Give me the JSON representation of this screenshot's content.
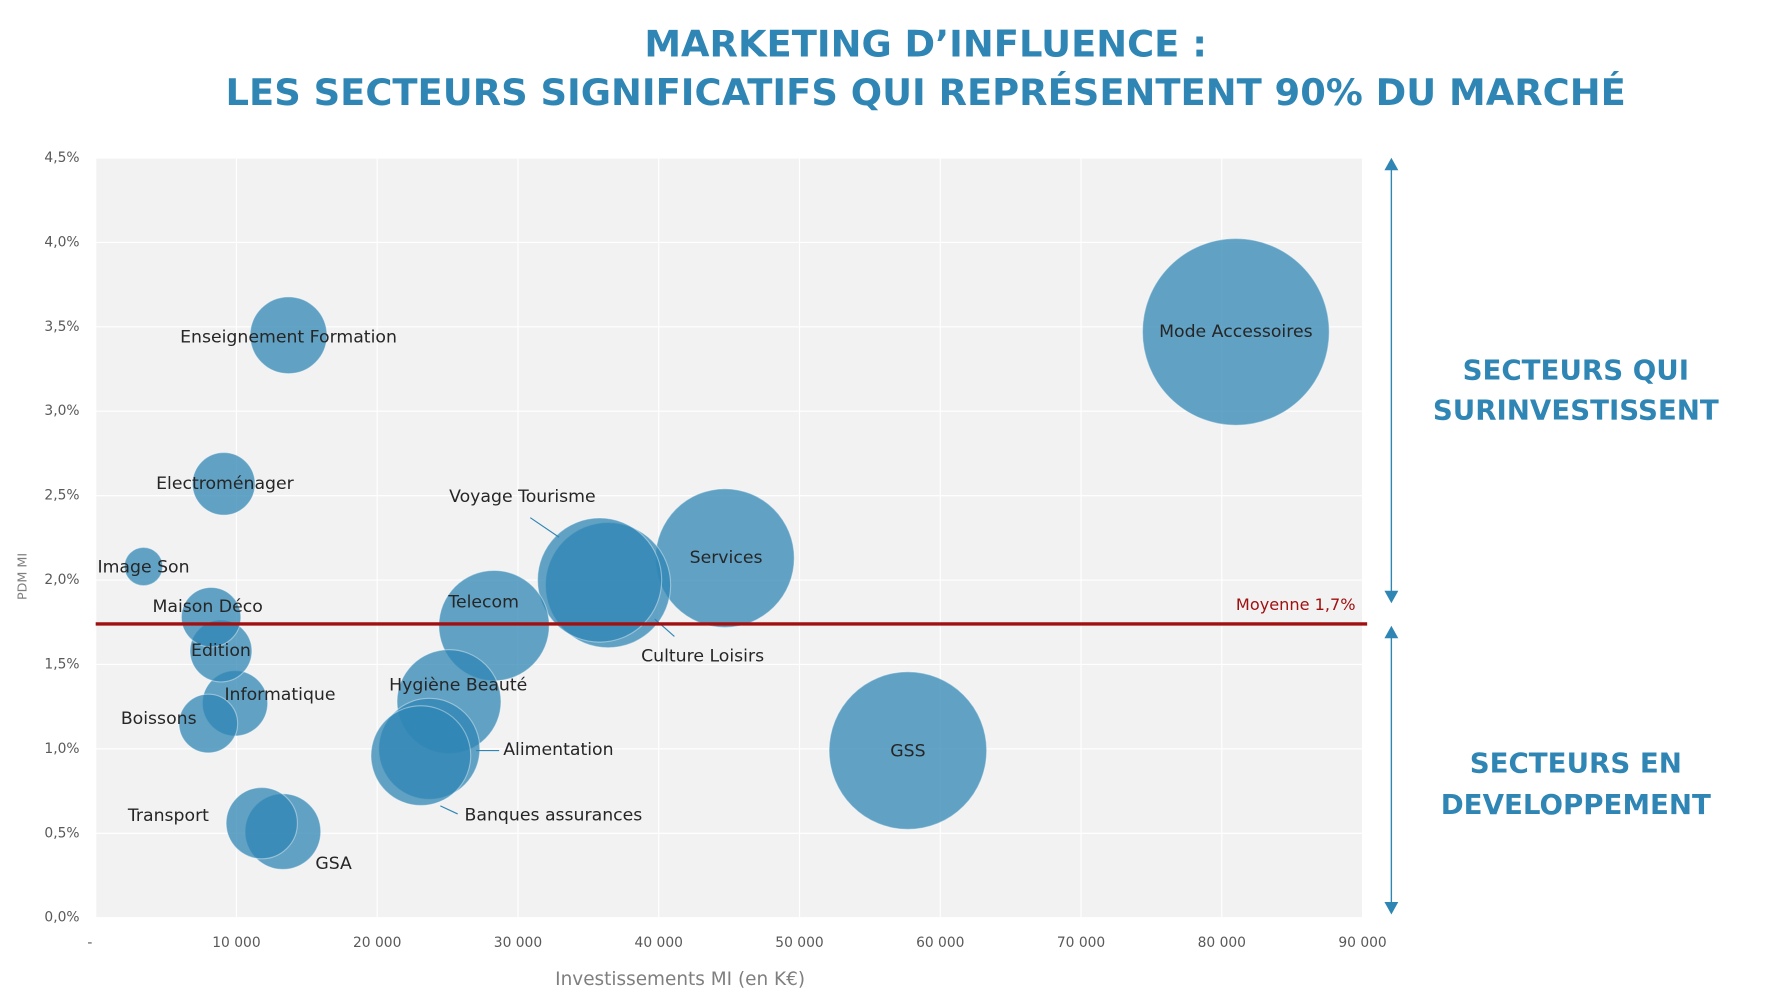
{
  "chart_data": {
    "type": "bubble",
    "title": "MARKETING D’INFLUENCE :",
    "subtitle": "LES SECTEURS SIGNIFICATIFS QUI REPRÉSENTENT 90% DU MARCHÉ",
    "x_label": "Investissements MI (en K€)",
    "y_label": "PDM MI",
    "color": "#2f86b4",
    "grid": true,
    "categories": [
      "Mode Accessoires",
      "Enseignement Formation",
      "Electroménager",
      "Image Son",
      "Maison Déco",
      "Edition",
      "Informatique",
      "Boissons",
      "Transport",
      "GSA",
      "Telecom",
      "Voyage Tourisme",
      "Culture Loisirs",
      "Services",
      "Hygiène Beauté",
      "Alimentation",
      "Banques assurances",
      "GSS"
    ],
    "x": [
      81000,
      13700,
      9100,
      3400,
      8200,
      8900,
      9900,
      8000,
      11800,
      13300,
      28300,
      35800,
      36400,
      44700,
      25100,
      23700,
      23100,
      57700
    ],
    "values": [
      3.47,
      3.45,
      2.57,
      2.08,
      1.78,
      1.58,
      1.27,
      1.15,
      0.56,
      0.51,
      1.73,
      2.0,
      1.97,
      2.13,
      1.28,
      1.0,
      0.96,
      0.99
    ],
    "xlim": [
      0,
      90000
    ],
    "xticks": [
      {
        "value": 0,
        "label": "-"
      },
      {
        "value": 10000,
        "label": "10 000"
      },
      {
        "value": 20000,
        "label": "20 000"
      },
      {
        "value": 30000,
        "label": "30 000"
      },
      {
        "value": 40000,
        "label": "40 000"
      },
      {
        "value": 50000,
        "label": "50 000"
      },
      {
        "value": 60000,
        "label": "60 000"
      },
      {
        "value": 70000,
        "label": "70 000"
      },
      {
        "value": 80000,
        "label": "80 000"
      },
      {
        "value": 90000,
        "label": "90 000"
      }
    ],
    "ylim": [
      0,
      4.5
    ],
    "yticks": [
      {
        "value": 0,
        "label": "0,0%"
      },
      {
        "value": 0.5,
        "label": "0,5%"
      },
      {
        "value": 1,
        "label": "1,0%"
      },
      {
        "value": 1.5,
        "label": "1,5%"
      },
      {
        "value": 2,
        "label": "2,0%"
      },
      {
        "value": 2.5,
        "label": "2,5%"
      },
      {
        "value": 3,
        "label": "3,0%"
      },
      {
        "value": 3.5,
        "label": "3,5%"
      },
      {
        "value": 4,
        "label": "4,0%"
      },
      {
        "value": 4.5,
        "label": "4,5%"
      }
    ],
    "reference_line": {
      "value": 1.74,
      "label": "Moyenne 1,7%",
      "color": "#a01010"
    },
    "annotations": [
      "SECTEURS QUI",
      "SURINVESTISSENT",
      "SECTEURS EN",
      "DEVELOPPEMENT"
    ]
  }
}
